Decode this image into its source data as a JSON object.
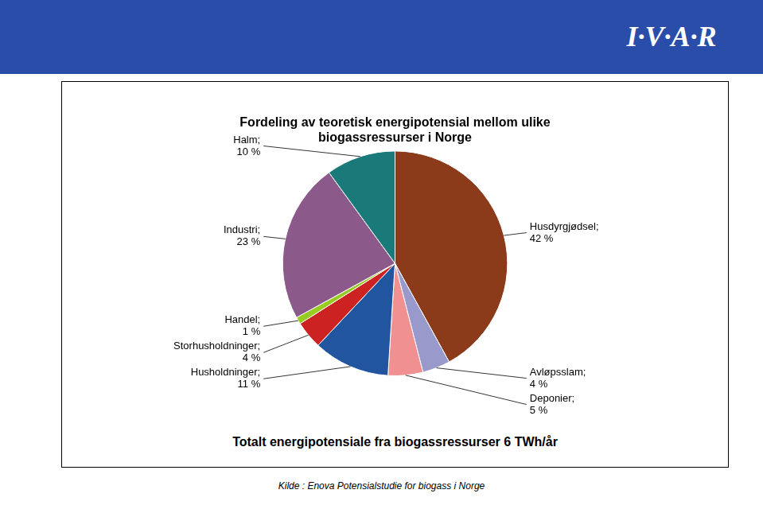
{
  "chart_data": {
    "type": "pie",
    "title": "Fordeling av teoretisk energipotensial mellom ulike\nbiogassressurser i Norge",
    "categories": [
      "Husdyrgjødsel;",
      "Avløpsslam;",
      "Deponier;",
      "Husholdninger;",
      "Storhusholdninger;",
      "Handel;",
      "Industri;",
      "Halm;"
    ],
    "values": [
      42,
      4,
      5,
      11,
      4,
      1,
      23,
      10
    ],
    "value_labels": [
      "42 %",
      "4 %",
      "5 %",
      "11 %",
      "4 %",
      "1 %",
      "23 %",
      "10 %"
    ],
    "colors": [
      "#8B3A1A",
      "#9999CC",
      "#F09090",
      "#2255A0",
      "#CC2222",
      "#99CC22",
      "#8B5A8B",
      "#1A7A7A"
    ],
    "data_labels": true,
    "legend": false,
    "annotations": [
      "Totalt energipotensiale fra biogassressurser 6 TWh/år",
      "Kilde : Enova Potensialstudie for biogass i Norge",
      "I·V·A·R"
    ]
  }
}
